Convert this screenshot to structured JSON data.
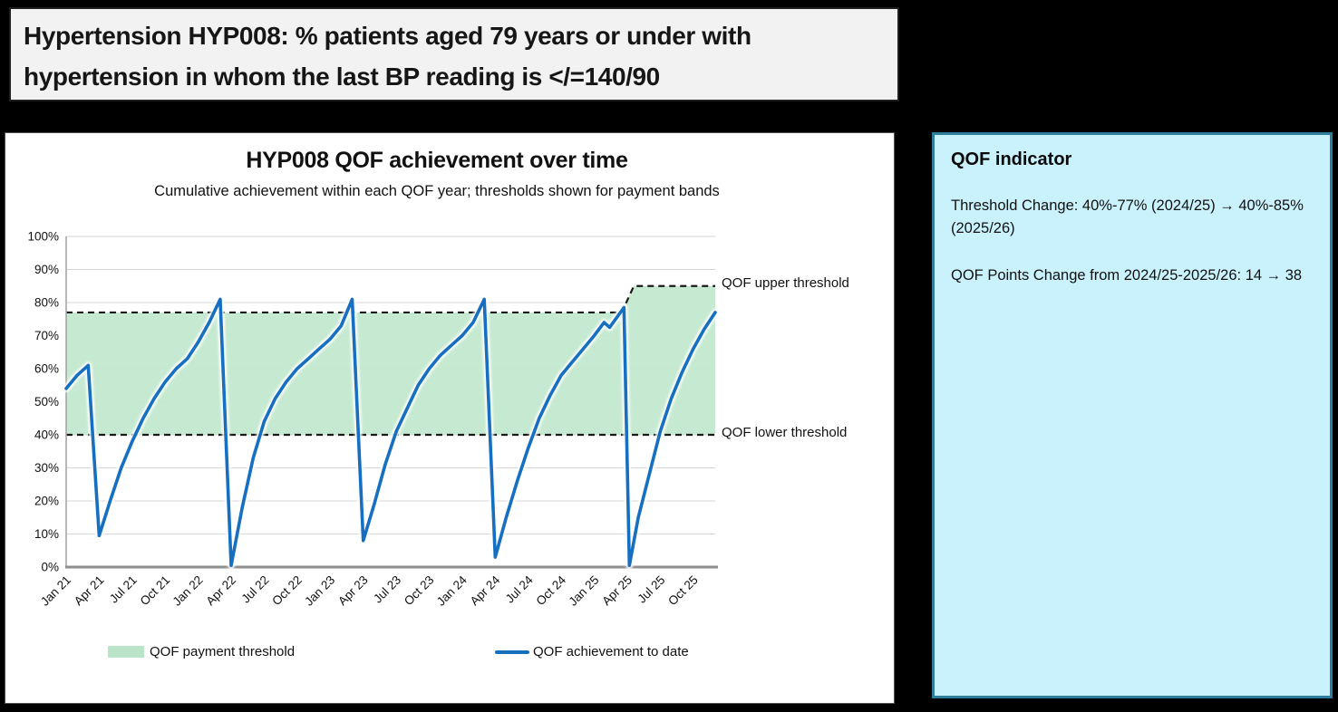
{
  "banner": {
    "title_line1": "Hypertension HYP008: % patients aged 79 years or under with",
    "title_line2": "hypertension in whom the last BP reading is </=140/90"
  },
  "side_panel": {
    "heading": "QOF indicator",
    "threshold_change": "Threshold Change: 40%-77% (2024/25) → 40%-85% (2025/26)",
    "points_change": "QOF Points Change from 2024/25-2025/26: 14 → 38",
    "background": "#c9f2fd",
    "border_color": "#2e7d9c"
  },
  "chart_data": {
    "type": "line",
    "title": "HYP008 QOF achievement over time",
    "subtitle": "Cumulative achievement within each QOF year; thresholds shown for payment bands",
    "ylim": [
      0,
      100
    ],
    "y_tick_labels": [
      "0%",
      "10%",
      "20%",
      "30%",
      "40%",
      "50%",
      "60%",
      "70%",
      "80%",
      "90%",
      "100%"
    ],
    "x_tick_labels": [
      "Jan 21",
      "Apr 21",
      "Jul 21",
      "Oct 21",
      "Jan 22",
      "Apr 22",
      "Jul 22",
      "Oct 22",
      "Jan 23",
      "Apr 23",
      "Jul 23",
      "Oct 23",
      "Jan 24",
      "Apr 24",
      "Jul 24",
      "Oct 24",
      "Jan 25",
      "Apr 25",
      "Jul 25",
      "Oct 25"
    ],
    "x_unit": "months since Jan 2021, quarterly ticks",
    "grid": true,
    "payment_band": {
      "name": "QOF payment threshold",
      "color": "#c3e8cf",
      "lower_threshold": 40,
      "upper_threshold_2024_25": 77,
      "upper_threshold_2025_26": 85,
      "upper_step_start_month": 50.5,
      "upper_step_end_month": 51.6
    },
    "series": [
      {
        "name": "QOF achievement to date",
        "color": "#176fc1",
        "points": [
          [
            0,
            54
          ],
          [
            1,
            58
          ],
          [
            2,
            61
          ],
          [
            3,
            9.5
          ],
          [
            4,
            20
          ],
          [
            5,
            30
          ],
          [
            6,
            38
          ],
          [
            7,
            45
          ],
          [
            8,
            51
          ],
          [
            9,
            56
          ],
          [
            10,
            60
          ],
          [
            11,
            63
          ],
          [
            12,
            68
          ],
          [
            13,
            74
          ],
          [
            14,
            81
          ],
          [
            15,
            0.5
          ],
          [
            16,
            18
          ],
          [
            17,
            33
          ],
          [
            18,
            44
          ],
          [
            19,
            51
          ],
          [
            20,
            56
          ],
          [
            21,
            60
          ],
          [
            22,
            63
          ],
          [
            23,
            66
          ],
          [
            24,
            69
          ],
          [
            25,
            73
          ],
          [
            26,
            81
          ],
          [
            27,
            8
          ],
          [
            28,
            19
          ],
          [
            29,
            31
          ],
          [
            30,
            41
          ],
          [
            31,
            48
          ],
          [
            32,
            55
          ],
          [
            33,
            60
          ],
          [
            34,
            64
          ],
          [
            35,
            67
          ],
          [
            36,
            70
          ],
          [
            37,
            74
          ],
          [
            38,
            81
          ],
          [
            39,
            3
          ],
          [
            40,
            15
          ],
          [
            41,
            26
          ],
          [
            42,
            36
          ],
          [
            43,
            45
          ],
          [
            44,
            52
          ],
          [
            45,
            58
          ],
          [
            46,
            62
          ],
          [
            47,
            66
          ],
          [
            48,
            70
          ],
          [
            48.9,
            74
          ],
          [
            49.4,
            72.5
          ],
          [
            50.7,
            78.5
          ],
          [
            51.2,
            0.5
          ],
          [
            52,
            15
          ],
          [
            53,
            28
          ],
          [
            54,
            41
          ],
          [
            55,
            51
          ],
          [
            56,
            59
          ],
          [
            57,
            66
          ],
          [
            58,
            72
          ],
          [
            59,
            77
          ]
        ]
      }
    ],
    "annotations": [
      {
        "text": "QOF upper threshold",
        "y": 85
      },
      {
        "text": "QOF lower threshold",
        "y": 40
      }
    ],
    "legend": [
      {
        "label": "QOF payment threshold",
        "type": "area",
        "color": "#b9e4c8"
      },
      {
        "label": "QOF achievement to date",
        "type": "line",
        "color": "#176fc1"
      }
    ],
    "legend_position": "bottom"
  }
}
